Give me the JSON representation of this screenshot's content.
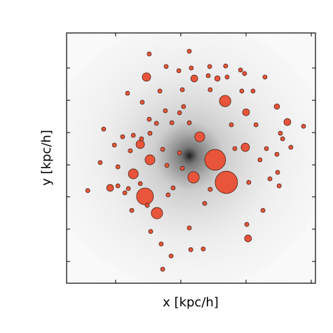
{
  "chart_data": {
    "type": "scatter",
    "xlabel": "x [kpc/h]",
    "ylabel": "y [kpc/h]",
    "xlim": [
      0,
      100
    ],
    "ylim": [
      0,
      100
    ],
    "xticks": [
      19.7,
      45.9,
      72.1,
      98.3
    ],
    "yticks": [
      8.7,
      21.6,
      34.5,
      47.3,
      60.2,
      73.1,
      86.0
    ],
    "series": [
      {
        "color": "#e8553a",
        "x": [
          64.2,
          59.7,
          31.5,
          63.7,
          36.3,
          51.0,
          26.8,
          33.5,
          32.1,
          53.5,
          29.6,
          72.1,
          88.7,
          72.9,
          71.8,
          17.5,
          51.3,
          84.5,
          60.6,
          33.2,
          49.3,
          57.5,
          63.9,
          69.9,
          40.0,
          50.1,
          45.1,
          56.9,
          64.5,
          71.5,
          37.5,
          46.5,
          47.0,
          57.7,
          70.4,
          74.9,
          79.7,
          24.5,
          30.4,
          39.7,
          45.4,
          33.2,
          36.1,
          49.3,
          42.3,
          66.2,
          76.1,
          85.9,
          95.2,
          14.9,
          22.5,
          26.8,
          19.2,
          25.6,
          38.6,
          45.4,
          67.6,
          80.3,
          84.5,
          86.8,
          90.1,
          13.5,
          20.6,
          40.3,
          46.5,
          29.6,
          20.6,
          24.8,
          42.8,
          8.5,
          26.2,
          32.4,
          40.8,
          55.5,
          57.7,
          73.2,
          81.7,
          85.4,
          78.9,
          72.4,
          49.3,
          33.8,
          38.0,
          49.9,
          54.9,
          42.0,
          38.6,
          30.1,
          33.5,
          23.4,
          84.8,
          77.7
        ],
        "y": [
          40.3,
          49.3,
          34.7,
          72.8,
          28.0,
          42.3,
          43.7,
          49.3,
          82.4,
          58.5,
          55.5,
          68.3,
          64.4,
          17.9,
          54.3,
          38.1,
          81.8,
          70.6,
          81.8,
          91.6,
          92.7,
          86.6,
          86.8,
          85.2,
          86.6,
          86.0,
          84.9,
          82.9,
          82.4,
          83.8,
          76.8,
          77.3,
          70.6,
          77.3,
          76.8,
          76.8,
          82.4,
          75.9,
          72.3,
          68.9,
          68.1,
          65.5,
          63.9,
          64.1,
          64.1,
          63.3,
          63.3,
          59.9,
          62.7,
          61.6,
          58.5,
          59.1,
          55.2,
          52.9,
          53.5,
          52.1,
          53.8,
          53.8,
          51.5,
          57.7,
          54.3,
          48.2,
          46.5,
          47.1,
          45.9,
          39.8,
          38.9,
          37.8,
          38.1,
          37.0,
          29.1,
          31.1,
          35.3,
          31.9,
          37.5,
          40.3,
          41.7,
          38.9,
          29.1,
          23.5,
          22.1,
          20.7,
          15.7,
          13.4,
          13.7,
          10.9,
          5.6,
          57.7,
          59.9,
          36.1,
          44.3,
          49.3
        ],
        "sizes": [
          4.5,
          4.2,
          3.4,
          2.3,
          2.3,
          2.3,
          2.0,
          2.0,
          1.7,
          2.0,
          1.7,
          1.4,
          1.4,
          1.4,
          1.7,
          1.4,
          1.4,
          1.1,
          1.1,
          0.85,
          0.85,
          0.85,
          0.85,
          0.85,
          0.85,
          0.85,
          0.85,
          0.85,
          0.85,
          0.85,
          0.85,
          0.85,
          0.85,
          0.85,
          0.85,
          0.85,
          0.85,
          0.85,
          0.85,
          0.85,
          0.85,
          0.85,
          0.85,
          0.85,
          0.85,
          0.85,
          0.85,
          0.85,
          0.85,
          0.85,
          0.85,
          0.85,
          0.85,
          0.85,
          0.85,
          0.85,
          0.85,
          0.85,
          0.85,
          0.85,
          0.85,
          0.85,
          0.85,
          0.85,
          0.85,
          0.85,
          0.85,
          0.85,
          0.85,
          0.85,
          0.85,
          0.85,
          0.85,
          0.85,
          0.85,
          0.85,
          0.85,
          0.85,
          0.85,
          0.85,
          0.85,
          0.85,
          0.85,
          0.85,
          0.85,
          0.85,
          0.85,
          0.85,
          0.85,
          0.85,
          0.85,
          0.85
        ]
      }
    ]
  }
}
